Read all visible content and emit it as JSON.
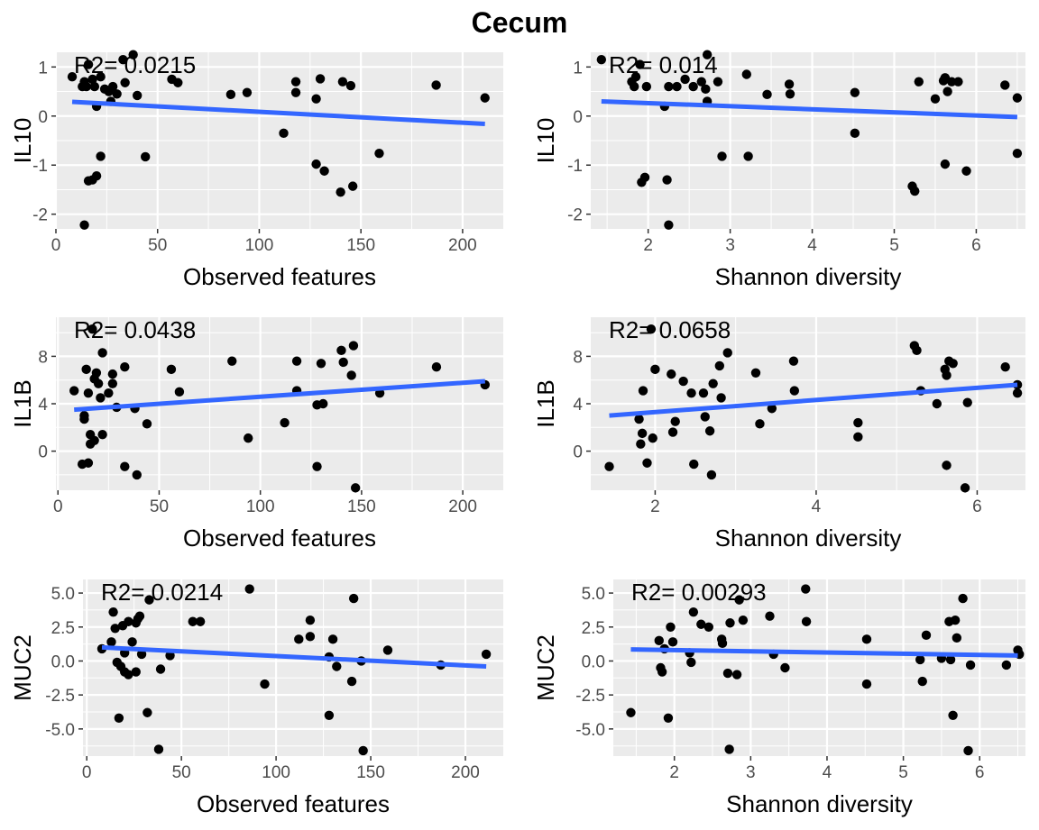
{
  "title": "Cecum",
  "colors": {
    "points": "#000000",
    "fit_line": "#3366FF",
    "panel_bg": "#EBEBEB",
    "grid": "#FFFFFF",
    "tick_text": "#4D4D4D"
  },
  "chart_data": [
    {
      "type": "scatter",
      "ylabel": "IL10",
      "xlabel": "Observed features",
      "annotation": "R2= 0.0215",
      "xlim": [
        0,
        220
      ],
      "ylim": [
        -2.3,
        1.3
      ],
      "xticks": [
        0,
        50,
        100,
        150,
        200
      ],
      "yticks": [
        -2,
        -1,
        0,
        1
      ],
      "fit": {
        "x": [
          8,
          211
        ],
        "y": [
          0.29,
          -0.16
        ]
      },
      "points": [
        [
          8,
          0.8
        ],
        [
          13,
          0.6
        ],
        [
          14,
          0.7
        ],
        [
          15,
          0.6
        ],
        [
          16,
          1.05
        ],
        [
          18,
          0.75
        ],
        [
          19,
          0.6
        ],
        [
          20,
          0.2
        ],
        [
          22,
          0.8
        ],
        [
          24,
          0.55
        ],
        [
          26,
          0.5
        ],
        [
          27,
          0.3
        ],
        [
          28,
          0.6
        ],
        [
          30,
          0.45
        ],
        [
          33,
          1.15
        ],
        [
          34,
          0.68
        ],
        [
          38,
          1.25
        ],
        [
          40,
          0.42
        ],
        [
          14,
          -2.22
        ],
        [
          16,
          -1.32
        ],
        [
          18,
          -1.3
        ],
        [
          20,
          -1.22
        ],
        [
          22,
          -0.82
        ],
        [
          44,
          -0.83
        ],
        [
          57,
          0.75
        ],
        [
          60,
          0.68
        ],
        [
          86,
          0.44
        ],
        [
          94,
          0.48
        ],
        [
          112,
          -0.35
        ],
        [
          118,
          0.7
        ],
        [
          118,
          0.48
        ],
        [
          128,
          0.35
        ],
        [
          128,
          -0.98
        ],
        [
          130,
          0.76
        ],
        [
          132,
          -1.12
        ],
        [
          140,
          -1.55
        ],
        [
          141,
          0.7
        ],
        [
          145,
          0.62
        ],
        [
          146,
          -1.43
        ],
        [
          159,
          -0.76
        ],
        [
          187,
          0.63
        ],
        [
          211,
          0.37
        ]
      ]
    },
    {
      "type": "scatter",
      "ylabel": "IL10",
      "xlabel": "Shannon diversity",
      "annotation": "R2= 0.014",
      "xlim": [
        1.3,
        6.6
      ],
      "ylim": [
        -2.3,
        1.3
      ],
      "xticks": [
        2,
        3,
        4,
        5,
        6
      ],
      "yticks": [
        -2,
        -1,
        0,
        1
      ],
      "fit": {
        "x": [
          1.43,
          6.5
        ],
        "y": [
          0.3,
          -0.02
        ]
      },
      "points": [
        [
          1.43,
          1.15
        ],
        [
          1.8,
          0.7
        ],
        [
          1.83,
          0.6
        ],
        [
          1.85,
          0.8
        ],
        [
          1.9,
          1.05
        ],
        [
          1.98,
          0.6
        ],
        [
          2.2,
          0.2
        ],
        [
          2.25,
          0.6
        ],
        [
          2.35,
          0.6
        ],
        [
          2.45,
          0.75
        ],
        [
          2.55,
          0.6
        ],
        [
          2.65,
          0.7
        ],
        [
          2.7,
          0.55
        ],
        [
          2.72,
          0.3
        ],
        [
          2.72,
          1.25
        ],
        [
          2.85,
          0.7
        ],
        [
          1.92,
          -1.35
        ],
        [
          1.96,
          -1.25
        ],
        [
          2.23,
          -1.3
        ],
        [
          2.25,
          -2.22
        ],
        [
          2.9,
          -0.82
        ],
        [
          3.22,
          -0.82
        ],
        [
          3.2,
          0.85
        ],
        [
          3.45,
          0.44
        ],
        [
          3.72,
          0.65
        ],
        [
          3.73,
          0.45
        ],
        [
          4.52,
          0.48
        ],
        [
          4.52,
          -0.35
        ],
        [
          5.22,
          -1.43
        ],
        [
          5.25,
          -1.53
        ],
        [
          5.3,
          0.7
        ],
        [
          5.5,
          0.35
        ],
        [
          5.6,
          0.72
        ],
        [
          5.62,
          0.78
        ],
        [
          5.62,
          -0.98
        ],
        [
          5.65,
          0.5
        ],
        [
          5.7,
          0.7
        ],
        [
          5.78,
          0.7
        ],
        [
          5.88,
          -1.12
        ],
        [
          6.35,
          0.63
        ],
        [
          6.5,
          0.37
        ],
        [
          6.5,
          -0.76
        ]
      ]
    },
    {
      "type": "scatter",
      "ylabel": "IL1B",
      "xlabel": "Observed features",
      "annotation": "R2= 0.0438",
      "xlim": [
        -1,
        220
      ],
      "ylim": [
        -3.3,
        11.3
      ],
      "xticks": [
        0,
        50,
        100,
        150,
        200
      ],
      "yticks": [
        0,
        4,
        8
      ],
      "fit": {
        "x": [
          8,
          211
        ],
        "y": [
          3.5,
          5.9
        ]
      },
      "points": [
        [
          8,
          5.1
        ],
        [
          12,
          -1.1
        ],
        [
          13,
          2.7
        ],
        [
          13,
          3.0
        ],
        [
          14,
          6.9
        ],
        [
          15,
          4.9
        ],
        [
          15,
          -1.0
        ],
        [
          16,
          1.4
        ],
        [
          16,
          0.6
        ],
        [
          17,
          10.3
        ],
        [
          18,
          6.1
        ],
        [
          18,
          0.9
        ],
        [
          19,
          6.6
        ],
        [
          20,
          5.7
        ],
        [
          21,
          4.5
        ],
        [
          22,
          1.4
        ],
        [
          22,
          8.3
        ],
        [
          25,
          4.9
        ],
        [
          27,
          5.7
        ],
        [
          27,
          6.5
        ],
        [
          29,
          3.7
        ],
        [
          33,
          -1.3
        ],
        [
          33,
          7.1
        ],
        [
          38,
          3.6
        ],
        [
          39,
          -2.0
        ],
        [
          44,
          2.3
        ],
        [
          56,
          6.9
        ],
        [
          60,
          5.0
        ],
        [
          86,
          7.6
        ],
        [
          94,
          1.1
        ],
        [
          112,
          2.4
        ],
        [
          118,
          7.6
        ],
        [
          118,
          5.1
        ],
        [
          128,
          -1.3
        ],
        [
          128,
          3.9
        ],
        [
          130,
          7.4
        ],
        [
          131,
          4.0
        ],
        [
          140,
          8.5
        ],
        [
          141,
          7.5
        ],
        [
          145,
          6.4
        ],
        [
          146,
          8.9
        ],
        [
          147,
          -3.1
        ],
        [
          159,
          4.9
        ],
        [
          187,
          7.1
        ],
        [
          211,
          5.6
        ]
      ]
    },
    {
      "type": "scatter",
      "ylabel": "IL1B",
      "xlabel": "Shannon diversity",
      "annotation": "R2= 0.0658",
      "xlim": [
        1.2,
        6.6
      ],
      "ylim": [
        -3.3,
        11.3
      ],
      "xticks": [
        2,
        4,
        6
      ],
      "yticks": [
        0,
        4,
        8
      ],
      "fit": {
        "x": [
          1.43,
          6.5
        ],
        "y": [
          3.0,
          5.6
        ]
      },
      "points": [
        [
          1.43,
          -1.3
        ],
        [
          1.8,
          2.7
        ],
        [
          1.82,
          0.6
        ],
        [
          1.84,
          1.5
        ],
        [
          1.85,
          5.1
        ],
        [
          1.9,
          -1.0
        ],
        [
          1.95,
          10.3
        ],
        [
          1.97,
          1.1
        ],
        [
          2.0,
          6.9
        ],
        [
          2.2,
          6.5
        ],
        [
          2.22,
          1.6
        ],
        [
          2.25,
          2.5
        ],
        [
          2.35,
          5.9
        ],
        [
          2.45,
          4.9
        ],
        [
          2.48,
          -1.1
        ],
        [
          2.6,
          4.9
        ],
        [
          2.62,
          2.9
        ],
        [
          2.68,
          1.7
        ],
        [
          2.7,
          -2.0
        ],
        [
          2.72,
          5.7
        ],
        [
          2.8,
          7.2
        ],
        [
          2.82,
          4.5
        ],
        [
          2.9,
          8.3
        ],
        [
          3.25,
          6.6
        ],
        [
          3.3,
          2.3
        ],
        [
          3.45,
          3.6
        ],
        [
          3.72,
          7.6
        ],
        [
          3.73,
          5.1
        ],
        [
          4.52,
          2.4
        ],
        [
          4.52,
          1.2
        ],
        [
          5.22,
          8.9
        ],
        [
          5.25,
          8.5
        ],
        [
          5.3,
          5.1
        ],
        [
          5.5,
          4.0
        ],
        [
          5.6,
          6.9
        ],
        [
          5.62,
          6.4
        ],
        [
          5.62,
          -1.2
        ],
        [
          5.65,
          7.6
        ],
        [
          5.7,
          7.4
        ],
        [
          5.85,
          -3.1
        ],
        [
          5.88,
          4.1
        ],
        [
          6.35,
          7.1
        ],
        [
          6.5,
          5.6
        ],
        [
          6.5,
          4.9
        ]
      ]
    },
    {
      "type": "scatter",
      "ylabel": "MUC2",
      "xlabel": "Observed features",
      "annotation": "R2= 0.0214",
      "xlim": [
        -2,
        220
      ],
      "ylim": [
        -7.0,
        6.0
      ],
      "xticks": [
        0,
        50,
        100,
        150,
        200
      ],
      "yticks": [
        -5.0,
        -2.5,
        0.0,
        2.5,
        5.0
      ],
      "fit": {
        "x": [
          8,
          211
        ],
        "y": [
          1.0,
          -0.4
        ]
      },
      "points": [
        [
          8,
          0.9
        ],
        [
          13,
          1.4
        ],
        [
          14,
          3.6
        ],
        [
          15,
          2.4
        ],
        [
          16,
          -0.1
        ],
        [
          17,
          -4.2
        ],
        [
          18,
          -0.4
        ],
        [
          19,
          2.6
        ],
        [
          20,
          -0.8
        ],
        [
          20,
          0.6
        ],
        [
          22,
          -1.0
        ],
        [
          22,
          2.9
        ],
        [
          24,
          1.4
        ],
        [
          26,
          -0.8
        ],
        [
          26,
          2.8
        ],
        [
          27,
          3.1
        ],
        [
          28,
          3.3
        ],
        [
          29,
          0.5
        ],
        [
          32,
          -3.8
        ],
        [
          33,
          4.5
        ],
        [
          38,
          -6.5
        ],
        [
          39,
          -0.6
        ],
        [
          44,
          0.4
        ],
        [
          56,
          2.9
        ],
        [
          60,
          2.9
        ],
        [
          86,
          5.3
        ],
        [
          94,
          -1.7
        ],
        [
          112,
          1.6
        ],
        [
          118,
          3.0
        ],
        [
          118,
          1.8
        ],
        [
          128,
          -4.0
        ],
        [
          128,
          0.3
        ],
        [
          130,
          1.6
        ],
        [
          132,
          -0.4
        ],
        [
          140,
          -1.5
        ],
        [
          141,
          4.6
        ],
        [
          145,
          0.0
        ],
        [
          146,
          -6.6
        ],
        [
          159,
          0.8
        ],
        [
          187,
          -0.3
        ],
        [
          211,
          0.5
        ]
      ]
    },
    {
      "type": "scatter",
      "ylabel": "MUC2",
      "xlabel": "Shannon diversity",
      "annotation": "R2= 0.00293",
      "xlim": [
        1.2,
        6.6
      ],
      "ylim": [
        -7.0,
        6.0
      ],
      "xticks": [
        2,
        3,
        4,
        5,
        6
      ],
      "yticks": [
        -5.0,
        -2.5,
        0.0,
        2.5,
        5.0
      ],
      "fit": {
        "x": [
          1.43,
          6.5
        ],
        "y": [
          0.85,
          0.4
        ]
      },
      "points": [
        [
          1.43,
          -3.8
        ],
        [
          1.8,
          1.5
        ],
        [
          1.82,
          -0.5
        ],
        [
          1.84,
          -0.8
        ],
        [
          1.87,
          0.9
        ],
        [
          1.92,
          -4.2
        ],
        [
          1.95,
          2.5
        ],
        [
          1.98,
          1.4
        ],
        [
          2.2,
          0.6
        ],
        [
          2.22,
          -0.1
        ],
        [
          2.25,
          3.6
        ],
        [
          2.35,
          2.7
        ],
        [
          2.45,
          2.5
        ],
        [
          2.62,
          1.6
        ],
        [
          2.63,
          1.3
        ],
        [
          2.7,
          -0.9
        ],
        [
          2.72,
          -6.5
        ],
        [
          2.73,
          2.8
        ],
        [
          2.82,
          -1.0
        ],
        [
          2.85,
          4.5
        ],
        [
          2.9,
          3.0
        ],
        [
          3.25,
          3.3
        ],
        [
          3.3,
          0.5
        ],
        [
          3.45,
          -0.5
        ],
        [
          3.72,
          5.3
        ],
        [
          3.73,
          2.9
        ],
        [
          4.52,
          1.6
        ],
        [
          4.52,
          -1.7
        ],
        [
          5.22,
          0.1
        ],
        [
          5.25,
          -1.5
        ],
        [
          5.3,
          1.9
        ],
        [
          5.5,
          0.2
        ],
        [
          5.6,
          2.9
        ],
        [
          5.62,
          0.1
        ],
        [
          5.65,
          -4.0
        ],
        [
          5.68,
          3.0
        ],
        [
          5.7,
          1.7
        ],
        [
          5.78,
          4.6
        ],
        [
          5.85,
          -6.6
        ],
        [
          5.88,
          -0.3
        ],
        [
          6.35,
          -0.3
        ],
        [
          6.5,
          0.8
        ],
        [
          6.52,
          0.5
        ]
      ]
    }
  ]
}
